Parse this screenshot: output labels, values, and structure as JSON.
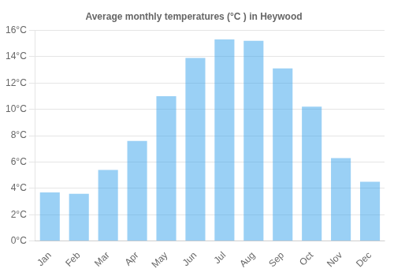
{
  "chart_data": {
    "type": "bar",
    "title": "Average monthly temperatures (°C ) in Heywood",
    "categories": [
      "Jan",
      "Feb",
      "Mar",
      "Apr",
      "May",
      "Jun",
      "Jul",
      "Aug",
      "Sep",
      "Oct",
      "Nov",
      "Dec"
    ],
    "values": [
      3.7,
      3.6,
      5.4,
      7.6,
      11.0,
      13.9,
      15.3,
      15.2,
      13.1,
      10.2,
      6.3,
      4.5
    ],
    "ylim": [
      0,
      16
    ],
    "yticks": [
      {
        "value": 0,
        "label": "0°C"
      },
      {
        "value": 2,
        "label": "2°C"
      },
      {
        "value": 4,
        "label": "4°C"
      },
      {
        "value": 6,
        "label": "6°C"
      },
      {
        "value": 8,
        "label": "8°C"
      },
      {
        "value": 10,
        "label": "10°C"
      },
      {
        "value": 12,
        "label": "12°C"
      },
      {
        "value": 14,
        "label": "14°C"
      },
      {
        "value": 16,
        "label": "16°C"
      }
    ],
    "grid": true
  }
}
